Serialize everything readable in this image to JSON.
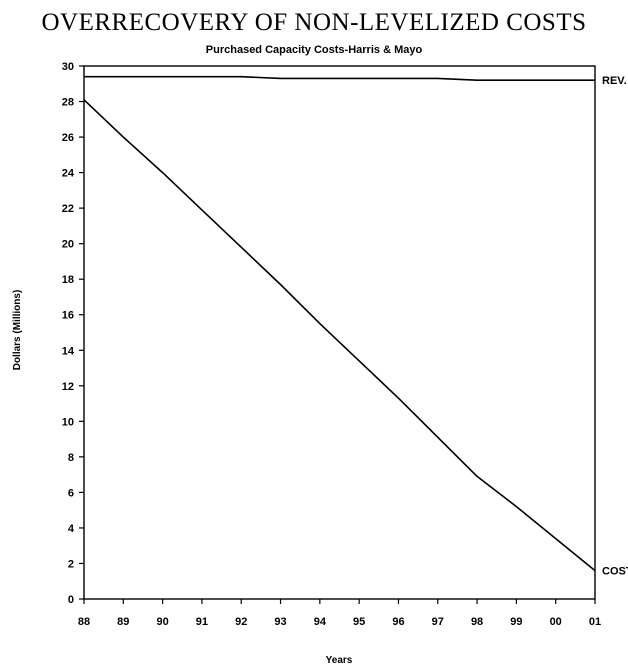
{
  "chart_data": {
    "type": "line",
    "title": "OVERRECOVERY OF NON-LEVELIZED COSTS",
    "subtitle": "Purchased Capacity Costs-Harris & Mayo",
    "xlabel": "Years",
    "ylabel": "Dollars (Millions)",
    "ylim": [
      0,
      30
    ],
    "y_ticks": [
      0,
      2,
      4,
      6,
      8,
      10,
      12,
      14,
      16,
      18,
      20,
      22,
      24,
      26,
      28,
      30
    ],
    "categories": [
      "88",
      "89",
      "90",
      "91",
      "92",
      "93",
      "94",
      "95",
      "96",
      "97",
      "98",
      "99",
      "00",
      "01"
    ],
    "grid": false,
    "series": [
      {
        "name": "REV.",
        "values": [
          29.4,
          29.4,
          29.4,
          29.4,
          29.4,
          29.3,
          29.3,
          29.3,
          29.3,
          29.3,
          29.2,
          29.2,
          29.2,
          29.2
        ]
      },
      {
        "name": "COST",
        "values": [
          28.1,
          26.0,
          24.0,
          21.9,
          19.8,
          17.7,
          15.5,
          13.4,
          11.3,
          9.1,
          6.9,
          5.2,
          3.4,
          1.6
        ]
      }
    ]
  },
  "colors": {
    "line": "#000000",
    "background": "#ffffff"
  }
}
